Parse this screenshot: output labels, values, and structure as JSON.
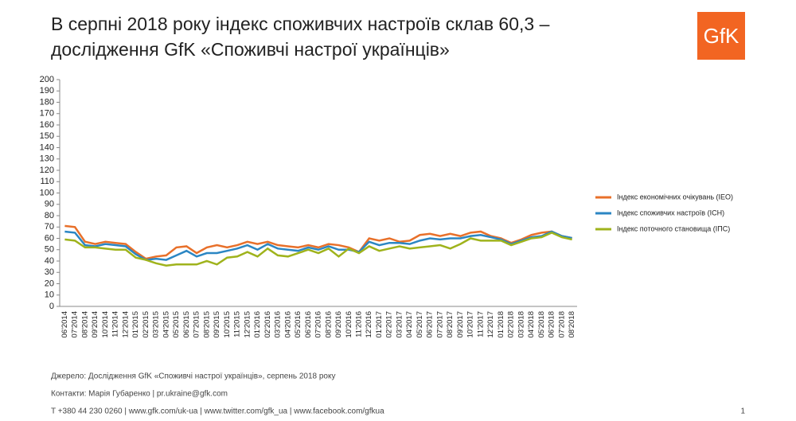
{
  "chart_data": {
    "type": "line",
    "title": [
      "В серпні 2018 року індекс споживчих настроїв склав 60,3 –",
      "дослідження GfK «Споживчі настрої українців»"
    ],
    "logo": "GfK",
    "categories": [
      "06'2014",
      "07'2014",
      "08'2014",
      "09'2014",
      "10'2014",
      "11'2014",
      "12'2014",
      "01'2015",
      "02'2015",
      "03'2015",
      "04'2015",
      "05'2015",
      "06'2015",
      "07'2015",
      "08'2015",
      "09'2015",
      "10'2015",
      "11'2015",
      "12'2015",
      "01'2016",
      "02'2016",
      "03'2016",
      "04'2016",
      "05'2016",
      "06'2016",
      "07'2016",
      "08'2016",
      "09'2016",
      "10'2016",
      "11'2016",
      "12'2016",
      "01'2017",
      "02'2017",
      "03'2017",
      "04'2017",
      "05'2017",
      "06'2017",
      "07'2017",
      "08'2017",
      "09'2017",
      "10'2017",
      "11'2017",
      "12'2017",
      "01'2018",
      "02'2018",
      "03'2018",
      "04'2018",
      "05'2018",
      "06'2018",
      "07'2018",
      "08'2018"
    ],
    "series": [
      {
        "name": "Індекс економічних очікувань (ІЕО)",
        "color": "#e8702a",
        "values": [
          71,
          70,
          57,
          55,
          57,
          56,
          55,
          48,
          42,
          44,
          45,
          52,
          53,
          47,
          52,
          54,
          52,
          54,
          57,
          55,
          57,
          54,
          53,
          52,
          54,
          52,
          55,
          54,
          52,
          48,
          60,
          58,
          60,
          57,
          58,
          63,
          64,
          62,
          64,
          62,
          65,
          66,
          62,
          60,
          56,
          59,
          63,
          65,
          66,
          62,
          60.3
        ]
      },
      {
        "name": "Індекс споживчих настроїв (ІСН)",
        "color": "#2b86c3",
        "values": [
          66,
          65,
          54,
          53,
          55,
          54,
          53,
          46,
          41,
          42,
          41,
          45,
          49,
          44,
          47,
          47,
          49,
          51,
          54,
          50,
          55,
          51,
          50,
          49,
          52,
          50,
          53,
          50,
          50,
          48,
          57,
          54,
          56,
          56,
          55,
          58,
          60,
          59,
          60,
          60,
          62,
          63,
          61,
          59,
          55,
          58,
          61,
          62,
          66,
          62,
          60.3
        ]
      },
      {
        "name": "Індекс поточного  становища (ІПС)",
        "color": "#9fb31c",
        "values": [
          59,
          58,
          52,
          52,
          51,
          50,
          50,
          43,
          41,
          38,
          36,
          37,
          37,
          37,
          40,
          37,
          43,
          44,
          48,
          44,
          51,
          45,
          44,
          47,
          50,
          47,
          51,
          44,
          51,
          47,
          53,
          49,
          51,
          53,
          51,
          52,
          53,
          54,
          51,
          55,
          60,
          58,
          58,
          58,
          54,
          57,
          60,
          61,
          65,
          61,
          59
        ]
      }
    ],
    "ylim": [
      0,
      200
    ],
    "yticks": [
      0,
      10,
      20,
      30,
      40,
      50,
      60,
      70,
      80,
      90,
      100,
      110,
      120,
      130,
      140,
      150,
      160,
      170,
      180,
      190,
      200
    ],
    "grid": false,
    "legend": "right",
    "footer": [
      "Джерело: Дослідження GfK «Споживчі настрої українців», серпень 2018 року",
      "Контакти: Марія Губаренко | pr.ukraine@gfk.com",
      "T +380 44 230 0260 | www.gfk.com/uk-ua | www.twitter.com/gfk_ua | www.facebook.com/gfkua"
    ],
    "page_number": "1"
  }
}
